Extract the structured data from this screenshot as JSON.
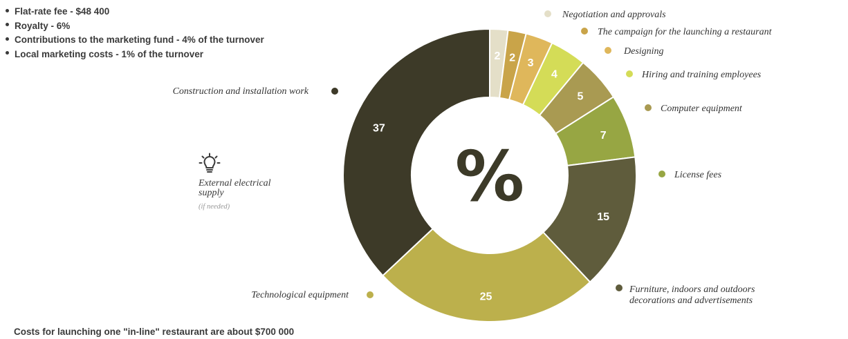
{
  "fees": [
    "Flat-rate fee - $48 400",
    "Royalty - 6%",
    "Contributions to the marketing fund - 4% of the turnover",
    "Local marketing costs - 1% of the turnover"
  ],
  "footnote": "Costs for launching one \"in-line\" restaurant are about $700 000",
  "tip": {
    "icon": "lightbulb-icon",
    "title": "External electrical supply",
    "note": "(if needed)"
  },
  "chart_data": {
    "type": "pie",
    "donut": true,
    "center_label": "%",
    "slices": [
      {
        "label": "Negotiation and approvals",
        "value": 2,
        "color": "#e4dfc8",
        "text_color": "#ffffff"
      },
      {
        "label": "The campaign for the launching a restaurant",
        "value": 2,
        "color": "#c9a449",
        "text_color": "#ffffff"
      },
      {
        "label": "Designing",
        "value": 3,
        "color": "#dfb75b",
        "text_color": "#ffffff"
      },
      {
        "label": "Hiring and training employees",
        "value": 4,
        "color": "#d4dc57",
        "text_color": "#ffffff"
      },
      {
        "label": "Computer equipment",
        "value": 5,
        "color": "#a99a52",
        "text_color": "#ffffff"
      },
      {
        "label": "License fees",
        "value": 7,
        "color": "#97a643",
        "text_color": "#ffffff"
      },
      {
        "label": "Furniture, indoors and outdoors decorations and advertisements",
        "value": 15,
        "color": "#5f5c3c",
        "text_color": "#ffffff"
      },
      {
        "label": "Technological equipment",
        "value": 25,
        "color": "#bcb04c",
        "text_color": "#ffffff"
      },
      {
        "label": "Construction and installation work",
        "value": 37,
        "color": "#3d3a28",
        "text_color": "#ffffff"
      }
    ]
  }
}
